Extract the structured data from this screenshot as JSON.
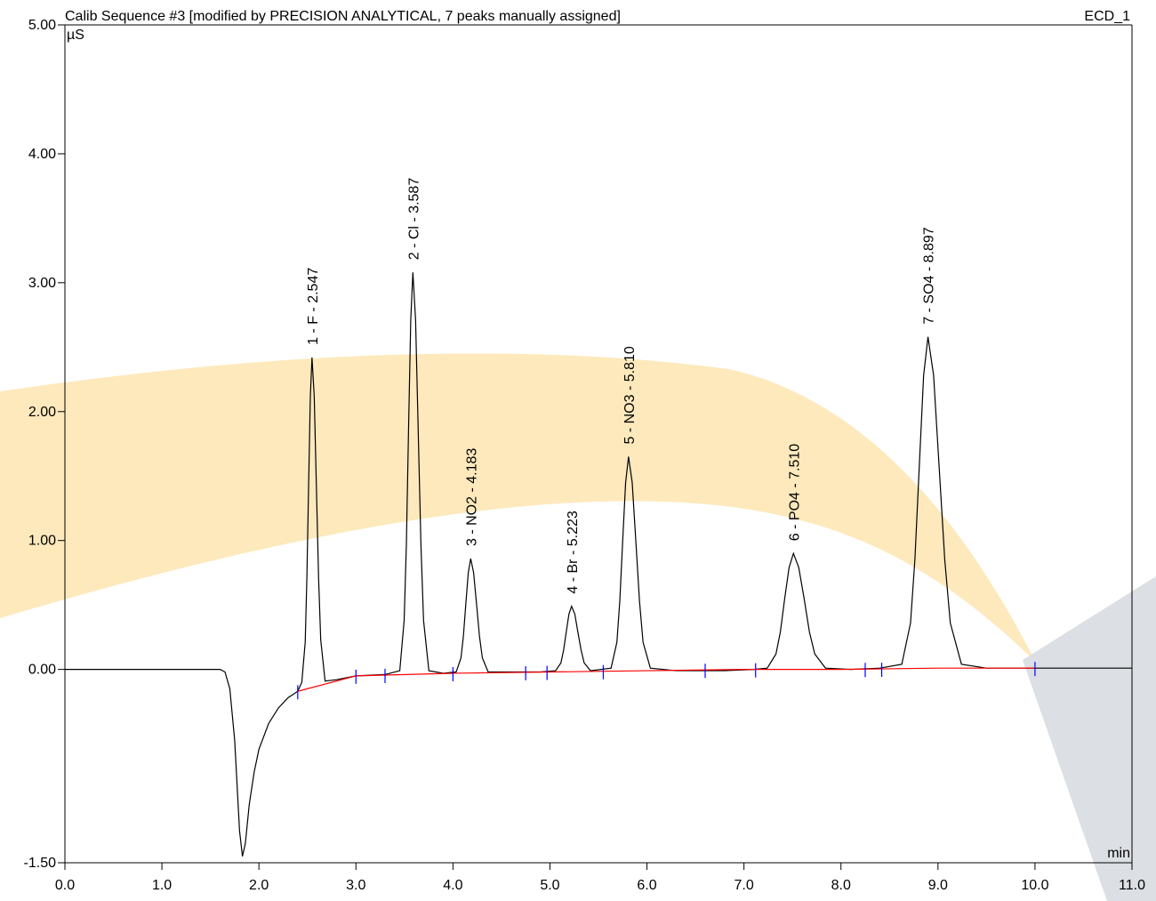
{
  "chart_data": {
    "type": "line",
    "title": "Calib Sequence #3 [modified by PRECISION ANALYTICAL, 7 peaks manually assigned]",
    "channel": "ECD_1",
    "y_label": "µS",
    "x_label": "min",
    "xlim": [
      0,
      11
    ],
    "ylim": [
      -1.5,
      5
    ],
    "xticks": [
      {
        "value": 0,
        "label": "0.0"
      },
      {
        "value": 1,
        "label": "1.0"
      },
      {
        "value": 2,
        "label": "2.0"
      },
      {
        "value": 3,
        "label": "3.0"
      },
      {
        "value": 4,
        "label": "4.0"
      },
      {
        "value": 5,
        "label": "5.0"
      },
      {
        "value": 6,
        "label": "6.0"
      },
      {
        "value": 7,
        "label": "7.0"
      },
      {
        "value": 8,
        "label": "8.0"
      },
      {
        "value": 9,
        "label": "9.0"
      },
      {
        "value": 10,
        "label": "10.0"
      },
      {
        "value": 11,
        "label": "11.0"
      }
    ],
    "yticks": [
      {
        "value": -1.5,
        "label": "-1.50"
      },
      {
        "value": 0,
        "label": "0.00"
      },
      {
        "value": 1,
        "label": "1.00"
      },
      {
        "value": 2,
        "label": "2.00"
      },
      {
        "value": 3,
        "label": "3.00"
      },
      {
        "value": 4,
        "label": "4.00"
      },
      {
        "value": 5,
        "label": "5.00"
      }
    ],
    "series": [
      {
        "color": "#000000",
        "x": [
          0,
          1.0,
          1.6,
          1.65,
          1.7,
          1.75,
          1.8,
          1.83,
          1.86,
          1.9,
          1.95,
          2.0,
          2.1,
          2.2,
          2.3,
          2.4,
          2.442,
          2.477,
          2.494,
          2.512,
          2.53,
          2.547,
          2.57,
          2.592,
          2.615,
          2.637,
          2.682,
          2.8,
          3.0,
          3.3,
          3.452,
          3.497,
          3.52,
          3.542,
          3.565,
          3.587,
          3.615,
          3.642,
          3.67,
          3.697,
          3.752,
          3.9,
          4.033,
          4.083,
          4.108,
          4.133,
          4.158,
          4.183,
          4.213,
          4.243,
          4.273,
          4.303,
          4.363,
          4.6,
          4.9,
          5.058,
          5.113,
          5.141,
          5.168,
          5.196,
          5.223,
          5.256,
          5.288,
          5.321,
          5.353,
          5.418,
          5.63,
          5.69,
          5.72,
          5.75,
          5.78,
          5.81,
          5.848,
          5.885,
          5.923,
          5.96,
          6.035,
          6.3,
          6.8,
          7.1,
          7.24,
          7.33,
          7.375,
          7.42,
          7.465,
          7.51,
          7.565,
          7.62,
          7.675,
          7.73,
          7.84,
          8.1,
          8.4,
          8.627,
          8.717,
          8.762,
          8.807,
          8.852,
          8.897,
          8.955,
          9.012,
          9.07,
          9.127,
          9.242,
          9.5,
          10.0,
          11.0
        ],
        "values": [
          0,
          0,
          0,
          -0.02,
          -0.15,
          -0.55,
          -1.25,
          -1.45,
          -1.35,
          -1.05,
          -0.8,
          -0.62,
          -0.42,
          -0.3,
          -0.22,
          -0.17,
          -0.1,
          0.21,
          0.7,
          1.42,
          2.12,
          2.42,
          2.12,
          1.43,
          0.71,
          0.23,
          -0.09,
          -0.08,
          -0.05,
          -0.04,
          -0.01,
          0.38,
          0.97,
          1.85,
          2.71,
          3.08,
          2.71,
          1.85,
          0.97,
          0.38,
          -0.01,
          -0.03,
          -0.02,
          0.09,
          0.26,
          0.51,
          0.75,
          0.86,
          0.75,
          0.51,
          0.26,
          0.09,
          -0.02,
          -0.02,
          -0.02,
          -0.01,
          0.05,
          0.15,
          0.29,
          0.43,
          0.49,
          0.43,
          0.29,
          0.15,
          0.05,
          -0.01,
          0.01,
          0.21,
          0.53,
          1.0,
          1.45,
          1.65,
          1.45,
          1.0,
          0.53,
          0.21,
          0.01,
          -0.01,
          -0.01,
          0,
          0.01,
          0.12,
          0.29,
          0.55,
          0.79,
          0.9,
          0.79,
          0.55,
          0.29,
          0.12,
          0.01,
          0,
          0.01,
          0.04,
          0.36,
          0.85,
          1.57,
          2.28,
          2.58,
          2.28,
          1.57,
          0.85,
          0.36,
          0.04,
          0.01,
          0.01,
          0.01
        ]
      },
      {
        "color": "#ff0000",
        "x": [
          2.4,
          3.0,
          4.0,
          5.0,
          6.0,
          7.0,
          8.0,
          9.0,
          10.0
        ],
        "values": [
          -0.17,
          -0.05,
          -0.03,
          -0.02,
          -0.01,
          0,
          0,
          0.01,
          0.01
        ]
      }
    ],
    "delimiter_color": "#0000ff",
    "delimiters": [
      2.4,
      3.0,
      3.3,
      4.0,
      4.75,
      4.97,
      5.55,
      6.6,
      7.12,
      8.25,
      8.42,
      10.0
    ],
    "peak_labels": [
      {
        "text": "1 - F - 2.547",
        "x": 2.547
      },
      {
        "text": "2 - Cl - 3.587",
        "x": 3.587
      },
      {
        "text": "3 - NO2 - 4.183",
        "x": 4.183
      },
      {
        "text": "4 - Br - 5.223",
        "x": 5.223
      },
      {
        "text": "5 - NO3 - 5.810",
        "x": 5.81
      },
      {
        "text": "6 - PO4 - 7.510",
        "x": 7.51
      },
      {
        "text": "7 - SO4 - 8.897",
        "x": 8.897
      }
    ]
  }
}
